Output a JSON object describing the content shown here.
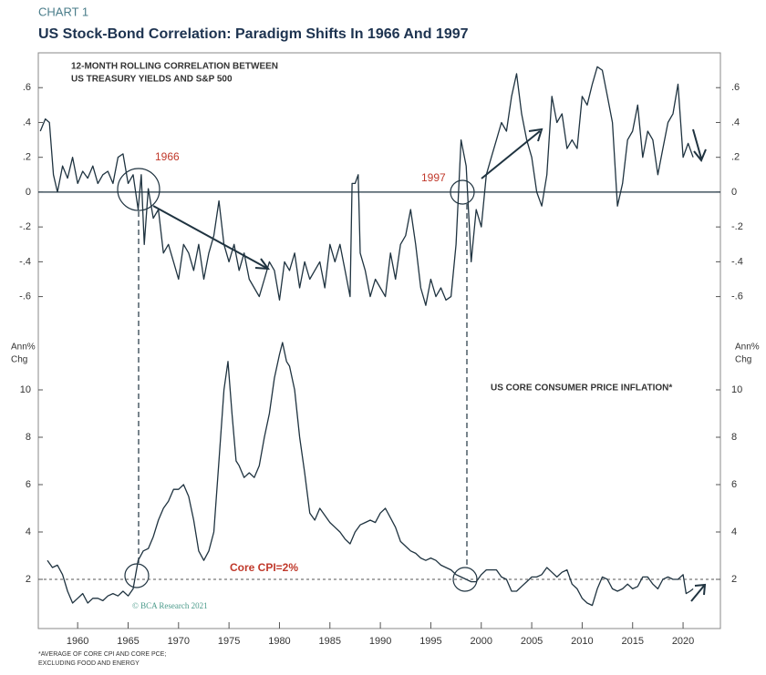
{
  "header": {
    "chart_label": "CHART 1",
    "title": "US Stock-Bond Correlation: Paradigm Shifts In 1966 And 1997"
  },
  "chart_data": [
    {
      "type": "line",
      "annotations": [
        "12-MONTH ROLLING CORRELATION BETWEEN",
        "US TREASURY YIELDS AND S&P 500",
        "1966",
        "1997"
      ],
      "xlim": [
        1956.1,
        2023.7
      ],
      "ylim": [
        -0.78,
        0.8
      ],
      "yticks": [
        {
          "value": 0.6,
          "label": ".6"
        },
        {
          "value": 0.4,
          "label": ".4"
        },
        {
          "value": 0.2,
          "label": ".2"
        },
        0,
        {
          "value": -0.2,
          "label": "-.2"
        },
        {
          "value": -0.4,
          "label": "-.4"
        },
        {
          "value": -0.6,
          "label": "-.6"
        }
      ],
      "hline": 0,
      "color": "#1f3340",
      "x": [
        1956.3,
        1956.8,
        1957.2,
        1957.6,
        1958,
        1958.5,
        1959,
        1959.5,
        1960,
        1960.5,
        1961,
        1961.5,
        1962,
        1962.5,
        1963,
        1963.5,
        1964,
        1964.5,
        1965,
        1965.5,
        1966,
        1966.3,
        1966.6,
        1967,
        1967.5,
        1968,
        1968.5,
        1969,
        1969.5,
        1970,
        1970.5,
        1971,
        1971.5,
        1972,
        1972.5,
        1973,
        1973.5,
        1974,
        1974.5,
        1975,
        1975.5,
        1976,
        1976.5,
        1977,
        1977.5,
        1978,
        1978.5,
        1979,
        1979.5,
        1980,
        1980.5,
        1981,
        1981.5,
        1982,
        1982.5,
        1983,
        1983.5,
        1984,
        1984.5,
        1985,
        1985.5,
        1986,
        1986.5,
        1987,
        1987.2,
        1987.5,
        1987.8,
        1988,
        1988.5,
        1989,
        1989.5,
        1990,
        1990.5,
        1991,
        1991.5,
        1992,
        1992.5,
        1993,
        1993.5,
        1994,
        1994.5,
        1995,
        1995.5,
        1996,
        1996.5,
        1997,
        1997.5,
        1998,
        1998.5,
        1999,
        1999.5,
        2000,
        2000.5,
        2001,
        2001.5,
        2002,
        2002.5,
        2003,
        2003.5,
        2004,
        2004.5,
        2005,
        2005.5,
        2006,
        2006.5,
        2007,
        2007.5,
        2008,
        2008.5,
        2009,
        2009.5,
        2010,
        2010.5,
        2011,
        2011.5,
        2012,
        2012.5,
        2013,
        2013.5,
        2014,
        2014.5,
        2015,
        2015.5,
        2016,
        2016.5,
        2017,
        2017.5,
        2018,
        2018.5,
        2019,
        2019.5,
        2020,
        2020.5,
        2021
      ],
      "values": [
        0.35,
        0.42,
        0.4,
        0.1,
        0.0,
        0.15,
        0.08,
        0.2,
        0.05,
        0.12,
        0.08,
        0.15,
        0.05,
        0.1,
        0.12,
        0.05,
        0.2,
        0.22,
        0.05,
        0.1,
        -0.1,
        0.1,
        -0.3,
        0.02,
        -0.15,
        -0.1,
        -0.35,
        -0.3,
        -0.4,
        -0.5,
        -0.3,
        -0.35,
        -0.45,
        -0.3,
        -0.5,
        -0.35,
        -0.25,
        -0.05,
        -0.3,
        -0.4,
        -0.3,
        -0.45,
        -0.35,
        -0.5,
        -0.55,
        -0.6,
        -0.5,
        -0.4,
        -0.45,
        -0.62,
        -0.4,
        -0.45,
        -0.35,
        -0.55,
        -0.4,
        -0.5,
        -0.45,
        -0.4,
        -0.55,
        -0.3,
        -0.4,
        -0.3,
        -0.45,
        -0.6,
        0.05,
        0.05,
        0.1,
        -0.35,
        -0.45,
        -0.6,
        -0.5,
        -0.55,
        -0.6,
        -0.35,
        -0.5,
        -0.3,
        -0.25,
        -0.1,
        -0.3,
        -0.55,
        -0.65,
        -0.5,
        -0.6,
        -0.55,
        -0.62,
        -0.6,
        -0.3,
        0.3,
        0.15,
        -0.4,
        -0.1,
        -0.2,
        0.1,
        0.2,
        0.3,
        0.4,
        0.35,
        0.55,
        0.68,
        0.45,
        0.3,
        0.2,
        0.0,
        -0.08,
        0.1,
        0.55,
        0.4,
        0.45,
        0.25,
        0.3,
        0.25,
        0.55,
        0.5,
        0.62,
        0.72,
        0.7,
        0.55,
        0.4,
        -0.08,
        0.05,
        0.3,
        0.35,
        0.5,
        0.2,
        0.35,
        0.3,
        0.1,
        0.25,
        0.4,
        0.45,
        0.62,
        0.2,
        0.28,
        0.2
      ]
    },
    {
      "type": "line",
      "annotations": [
        "US CORE CONSUMER PRICE INFLATION*",
        "Core CPI=2%",
        "© BCA Research 2021"
      ],
      "ylabel": [
        "Ann%",
        "Chg"
      ],
      "xlim": [
        1956.1,
        2023.7
      ],
      "xticks": [
        1960,
        1965,
        1970,
        1975,
        1980,
        1985,
        1990,
        1995,
        2000,
        2005,
        2010,
        2015,
        2020
      ],
      "ylim": [
        0,
        12
      ],
      "yticks": [
        2,
        4,
        6,
        8,
        10
      ],
      "reference_line": 2,
      "color": "#1f3340",
      "x": [
        1957,
        1957.5,
        1958,
        1958.5,
        1959,
        1959.5,
        1960,
        1960.5,
        1961,
        1961.5,
        1962,
        1962.5,
        1963,
        1963.5,
        1964,
        1964.5,
        1965,
        1965.5,
        1966,
        1966.5,
        1967,
        1967.5,
        1968,
        1968.5,
        1969,
        1969.5,
        1970,
        1970.5,
        1971,
        1971.5,
        1972,
        1972.5,
        1973,
        1973.5,
        1974,
        1974.5,
        1974.9,
        1975.3,
        1975.7,
        1976,
        1976.5,
        1977,
        1977.5,
        1978,
        1978.5,
        1979,
        1979.5,
        1980,
        1980.3,
        1980.7,
        1981,
        1981.5,
        1982,
        1982.5,
        1983,
        1983.5,
        1984,
        1984.5,
        1985,
        1985.5,
        1986,
        1986.5,
        1987,
        1987.5,
        1988,
        1988.5,
        1989,
        1989.5,
        1990,
        1990.5,
        1991,
        1991.5,
        1992,
        1992.5,
        1993,
        1993.5,
        1994,
        1994.5,
        1995,
        1995.5,
        1996,
        1996.5,
        1997,
        1997.5,
        1998,
        1998.5,
        1999,
        1999.5,
        2000,
        2000.5,
        2001,
        2001.5,
        2002,
        2002.5,
        2003,
        2003.5,
        2004,
        2004.5,
        2005,
        2005.5,
        2006,
        2006.5,
        2007,
        2007.5,
        2008,
        2008.5,
        2009,
        2009.5,
        2010,
        2010.5,
        2011,
        2011.5,
        2012,
        2012.5,
        2013,
        2013.5,
        2014,
        2014.5,
        2015,
        2015.5,
        2016,
        2016.5,
        2017,
        2017.5,
        2018,
        2018.5,
        2019,
        2019.5,
        2020,
        2020.3,
        2020.7,
        2021
      ],
      "values": [
        2.8,
        2.5,
        2.6,
        2.2,
        1.5,
        1.0,
        1.2,
        1.4,
        1.0,
        1.2,
        1.2,
        1.1,
        1.3,
        1.4,
        1.3,
        1.5,
        1.3,
        1.6,
        2.8,
        3.2,
        3.3,
        3.8,
        4.5,
        5.0,
        5.3,
        5.8,
        5.8,
        6.0,
        5.5,
        4.5,
        3.2,
        2.8,
        3.2,
        4.0,
        7.0,
        10.0,
        11.2,
        9.0,
        7.0,
        6.8,
        6.3,
        6.5,
        6.3,
        6.8,
        8.0,
        9.0,
        10.5,
        11.5,
        12.0,
        11.2,
        11.0,
        10.0,
        8.0,
        6.5,
        4.8,
        4.5,
        5.0,
        4.7,
        4.4,
        4.2,
        4.0,
        3.7,
        3.5,
        4.0,
        4.3,
        4.4,
        4.5,
        4.4,
        4.8,
        5.0,
        4.6,
        4.2,
        3.6,
        3.4,
        3.2,
        3.1,
        2.9,
        2.8,
        2.9,
        2.8,
        2.6,
        2.5,
        2.4,
        2.2,
        2.1,
        2.0,
        1.9,
        1.9,
        2.2,
        2.4,
        2.4,
        2.4,
        2.1,
        2.0,
        1.5,
        1.5,
        1.7,
        1.9,
        2.1,
        2.1,
        2.2,
        2.5,
        2.3,
        2.1,
        2.3,
        2.4,
        1.8,
        1.6,
        1.2,
        1.0,
        0.9,
        1.6,
        2.1,
        2.0,
        1.6,
        1.5,
        1.6,
        1.8,
        1.6,
        1.7,
        2.1,
        2.1,
        1.8,
        1.6,
        2.0,
        2.1,
        2.0,
        2.0,
        2.2,
        1.4,
        1.5,
        1.6
      ]
    }
  ],
  "footnote": [
    "*AVERAGE OF CORE CPI AND CORE PCE;",
    "EXCLUDING FOOD AND ENERGY"
  ]
}
